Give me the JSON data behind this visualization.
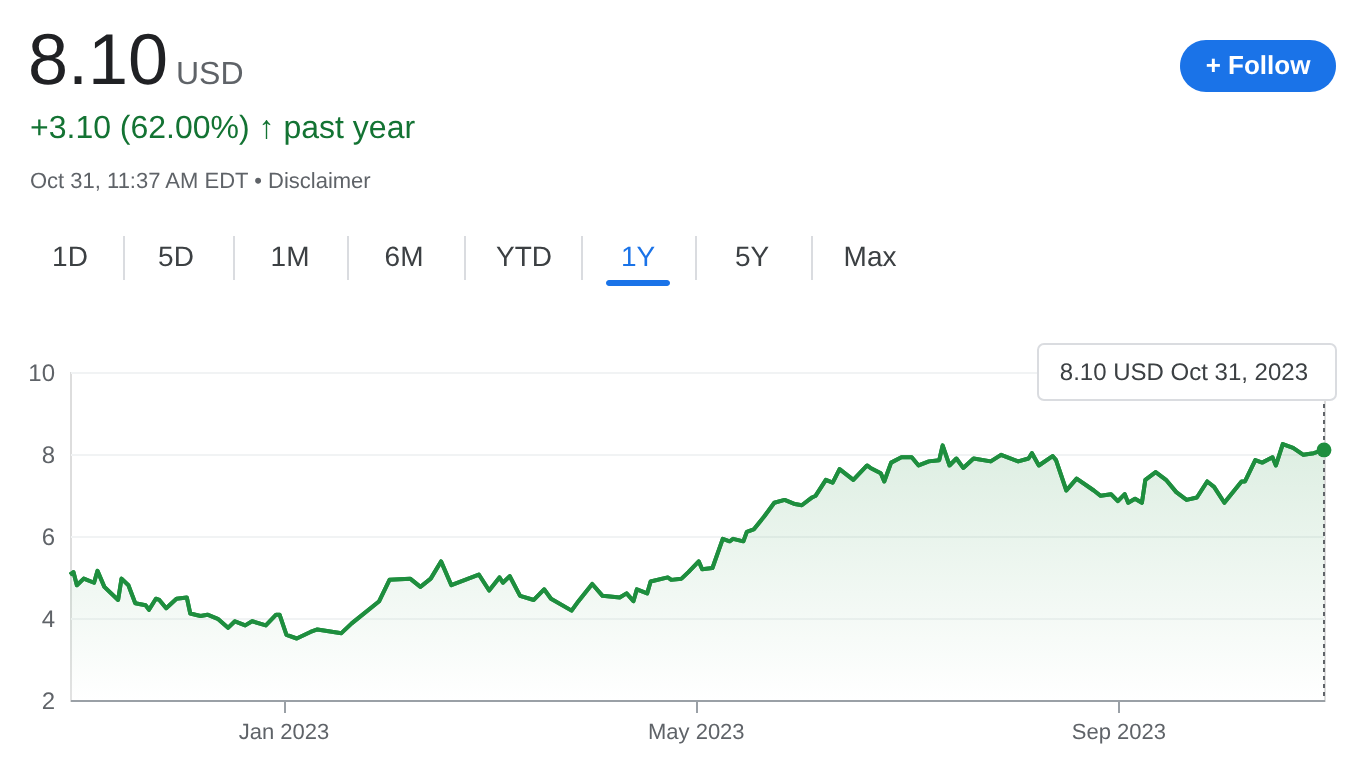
{
  "chart_data": {
    "type": "area",
    "title": "8.10",
    "color": "#1e8e3e",
    "x": [
      "2022-10-31",
      "2022-11-01",
      "2022-11-02",
      "2022-11-04",
      "2022-11-07",
      "2022-11-08",
      "2022-11-10",
      "2022-11-14",
      "2022-11-15",
      "2022-11-17",
      "2022-11-19",
      "2022-11-22",
      "2022-11-23",
      "2022-11-25",
      "2022-11-26",
      "2022-11-28",
      "2022-12-01",
      "2022-12-04",
      "2022-12-05",
      "2022-12-08",
      "2022-12-10",
      "2022-12-13",
      "2022-12-16",
      "2022-12-18",
      "2022-12-21",
      "2022-12-23",
      "2022-12-27",
      "2022-12-30",
      "2022-12-31",
      "2023-01-02",
      "2023-01-05",
      "2023-01-09",
      "2023-01-11",
      "2023-01-18",
      "2023-01-21",
      "2023-01-29",
      "2023-02-01",
      "2023-02-07",
      "2023-02-10",
      "2023-02-13",
      "2023-02-16",
      "2023-02-19",
      "2023-02-27",
      "2023-03-02",
      "2023-03-05",
      "2023-03-06",
      "2023-03-08",
      "2023-03-11",
      "2023-03-15",
      "2023-03-18",
      "2023-03-20",
      "2023-03-26",
      "2023-03-28",
      "2023-04-01",
      "2023-04-04",
      "2023-04-09",
      "2023-04-11",
      "2023-04-13",
      "2023-04-14",
      "2023-04-17",
      "2023-04-18",
      "2023-04-23",
      "2023-04-24",
      "2023-04-27",
      "2023-04-29",
      "2023-05-02",
      "2023-05-03",
      "2023-05-06",
      "2023-05-09",
      "2023-05-11",
      "2023-05-12",
      "2023-05-15",
      "2023-05-16",
      "2023-05-18",
      "2023-05-21",
      "2023-05-24",
      "2023-05-27",
      "2023-05-30",
      "2023-06-01",
      "2023-06-04",
      "2023-06-05",
      "2023-06-08",
      "2023-06-10",
      "2023-06-12",
      "2023-06-16",
      "2023-06-20",
      "2023-06-21",
      "2023-06-24",
      "2023-06-25",
      "2023-06-27",
      "2023-06-30",
      "2023-07-03",
      "2023-07-05",
      "2023-07-08",
      "2023-07-11",
      "2023-07-12",
      "2023-07-14",
      "2023-07-16",
      "2023-07-18",
      "2023-07-21",
      "2023-07-26",
      "2023-07-29",
      "2023-08-03",
      "2023-08-06",
      "2023-08-07",
      "2023-08-09",
      "2023-08-13",
      "2023-08-14",
      "2023-08-17",
      "2023-08-20",
      "2023-08-25",
      "2023-08-27",
      "2023-08-30",
      "2023-09-01",
      "2023-09-03",
      "2023-09-04",
      "2023-09-06",
      "2023-09-08",
      "2023-09-09",
      "2023-09-12",
      "2023-09-15",
      "2023-09-18",
      "2023-09-21",
      "2023-09-24",
      "2023-09-27",
      "2023-09-29",
      "2023-10-02",
      "2023-10-07",
      "2023-10-08",
      "2023-10-11",
      "2023-10-13",
      "2023-10-16",
      "2023-10-17",
      "2023-10-19",
      "2023-10-22",
      "2023-10-25",
      "2023-10-28",
      "2023-10-31"
    ],
    "values": [
      5.06,
      5.12,
      4.8,
      4.96,
      4.86,
      5.15,
      4.76,
      4.44,
      4.96,
      4.8,
      4.36,
      4.31,
      4.2,
      4.47,
      4.44,
      4.24,
      4.47,
      4.5,
      4.11,
      4.05,
      4.08,
      3.98,
      3.76,
      3.92,
      3.82,
      3.92,
      3.82,
      4.08,
      4.08,
      3.59,
      3.5,
      3.66,
      3.72,
      3.63,
      3.87,
      4.41,
      4.93,
      4.96,
      4.76,
      4.96,
      5.38,
      4.8,
      5.06,
      4.67,
      4.99,
      4.86,
      5.02,
      4.54,
      4.44,
      4.7,
      4.47,
      4.18,
      4.41,
      4.83,
      4.54,
      4.5,
      4.6,
      4.41,
      4.7,
      4.6,
      4.89,
      4.99,
      4.93,
      4.96,
      5.12,
      5.38,
      5.19,
      5.22,
      5.93,
      5.87,
      5.93,
      5.87,
      6.1,
      6.16,
      6.47,
      6.81,
      6.88,
      6.78,
      6.75,
      6.94,
      6.98,
      7.37,
      7.3,
      7.63,
      7.37,
      7.72,
      7.66,
      7.53,
      7.33,
      7.79,
      7.92,
      7.92,
      7.72,
      7.82,
      7.85,
      8.21,
      7.72,
      7.89,
      7.66,
      7.89,
      7.82,
      7.98,
      7.82,
      7.89,
      8.02,
      7.72,
      7.95,
      7.85,
      7.11,
      7.4,
      7.11,
      6.98,
      7.02,
      6.85,
      7.02,
      6.81,
      6.91,
      6.81,
      7.37,
      7.56,
      7.37,
      7.07,
      6.88,
      6.94,
      7.33,
      7.2,
      6.81,
      7.33,
      7.33,
      7.85,
      7.79,
      7.92,
      7.72,
      8.24,
      8.15,
      7.98,
      8.02,
      8.1
    ],
    "xlim": [
      "2022-10-31",
      "2023-10-31"
    ],
    "xticks": [
      {
        "value": "2023-01-01",
        "label": "Jan 2023"
      },
      {
        "value": "2023-05-01",
        "label": "May 2023"
      },
      {
        "value": "2023-09-01",
        "label": "Sep 2023"
      }
    ],
    "ylim": [
      2,
      10
    ],
    "yticks": [
      2,
      4,
      6,
      8,
      10
    ],
    "grid": "y",
    "ref_lines": [
      {
        "axis": "x",
        "value": "2023-10-31",
        "line_style": "dotted",
        "color": "#5f6368"
      }
    ],
    "annotations": [
      "USD",
      "+3.10 (62.00%) ↑ past year",
      "Oct 31, 11:37 AM EDT • Disclaimer",
      "+ Follow",
      "1D",
      "5D",
      "1M",
      "6M",
      "YTD",
      "1Y",
      "5Y",
      "Max",
      {
        "text": "8.10 USD  Oct 31, 2023",
        "x": "2023-10-31",
        "y": 8.1
      }
    ]
  }
}
